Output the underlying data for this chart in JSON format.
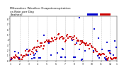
{
  "title": "Milwaukee Weather Evapotranspiration\nvs Rain per Day\n(Inches)",
  "title_fontsize": 3.2,
  "legend_colors_blue": "#0000cc",
  "legend_colors_red": "#cc0000",
  "background_color": "#ffffff",
  "xlim": [
    0,
    365
  ],
  "ylim": [
    0,
    0.85
  ],
  "vline_positions": [
    32,
    63,
    94,
    125,
    156,
    187,
    218,
    249,
    280,
    311,
    342
  ],
  "tick_positions": [
    0,
    32,
    63,
    94,
    125,
    156,
    187,
    218,
    249,
    280,
    311,
    342,
    365
  ],
  "tick_labels": [
    "1",
    "2",
    "3",
    "4",
    "5",
    "6",
    "7",
    "8",
    "9",
    "10",
    "11",
    "12",
    "1"
  ],
  "ytick_positions": [
    0.0,
    0.1,
    0.2,
    0.3,
    0.4,
    0.5,
    0.6,
    0.7,
    0.8
  ],
  "ytick_labels": [
    ".0",
    ".1",
    ".2",
    ".3",
    ".4",
    ".5",
    ".6",
    ".7",
    ".8"
  ]
}
